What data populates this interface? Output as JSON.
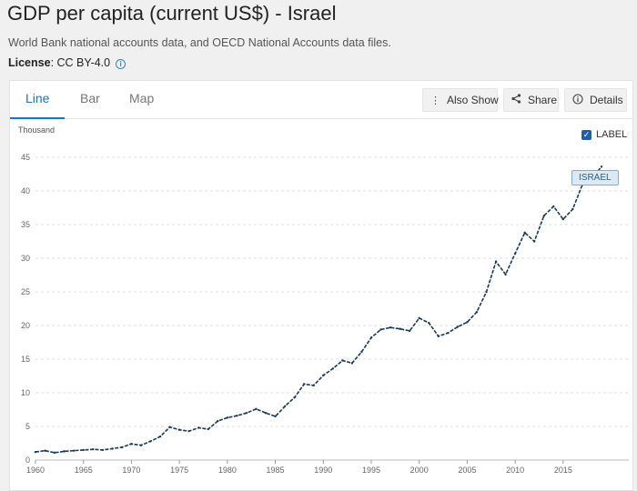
{
  "header": {
    "title": "GDP per capita (current US$) - Israel",
    "source": "World Bank national accounts data, and OECD National Accounts data files.",
    "license_label": "License",
    "license_value": ": CC BY-4.0"
  },
  "tabs": [
    {
      "label": "Line",
      "active": true
    },
    {
      "label": "Bar",
      "active": false
    },
    {
      "label": "Map",
      "active": false
    }
  ],
  "toolbar": {
    "also_show_label": "Also Show",
    "share_label": "Share",
    "details_label": "Details"
  },
  "chart_controls": {
    "unit_label": "Thousand",
    "label_toggle_text": "LABEL",
    "label_checked": true
  },
  "colors": {
    "line": "#1b3a55",
    "accent": "#1a75c2",
    "grid": "#dcdcdc"
  },
  "chart_data": {
    "type": "line",
    "title": "GDP per capita (current US$) - Israel",
    "ylabel": "Thousand",
    "xlabel": "",
    "xlim": [
      1960,
      2019
    ],
    "ylim": [
      0,
      45
    ],
    "x_ticks": [
      1960,
      1965,
      1970,
      1975,
      1980,
      1985,
      1990,
      1995,
      2000,
      2005,
      2010,
      2015
    ],
    "y_ticks": [
      0,
      5,
      10,
      15,
      20,
      25,
      30,
      35,
      40,
      45
    ],
    "grid": "horizontal dashed",
    "series": [
      {
        "name": "ISRAEL",
        "x": [
          1960,
          1961,
          1962,
          1963,
          1964,
          1965,
          1966,
          1967,
          1968,
          1969,
          1970,
          1971,
          1972,
          1973,
          1974,
          1975,
          1976,
          1977,
          1978,
          1979,
          1980,
          1981,
          1982,
          1983,
          1984,
          1985,
          1986,
          1987,
          1988,
          1989,
          1990,
          1991,
          1992,
          1993,
          1994,
          1995,
          1996,
          1997,
          1998,
          1999,
          2000,
          2001,
          2002,
          2003,
          2004,
          2005,
          2006,
          2007,
          2008,
          2009,
          2010,
          2011,
          2012,
          2013,
          2014,
          2015,
          2016,
          2017,
          2018,
          2019
        ],
        "y": [
          1.2,
          1.4,
          1.1,
          1.3,
          1.4,
          1.5,
          1.6,
          1.5,
          1.7,
          1.9,
          2.4,
          2.2,
          2.8,
          3.5,
          4.9,
          4.5,
          4.3,
          4.8,
          4.6,
          5.8,
          6.3,
          6.6,
          7.0,
          7.6,
          7.0,
          6.5,
          8.0,
          9.3,
          11.3,
          11.1,
          12.6,
          13.6,
          14.8,
          14.4,
          16.1,
          18.2,
          19.4,
          19.7,
          19.5,
          19.2,
          21.1,
          20.4,
          18.4,
          18.9,
          19.8,
          20.5,
          22.0,
          25.0,
          29.5,
          27.6,
          30.7,
          33.8,
          32.5,
          36.3,
          37.7,
          35.8,
          37.3,
          40.9,
          42.0,
          43.6
        ]
      }
    ],
    "end_label": "ISRAEL"
  }
}
